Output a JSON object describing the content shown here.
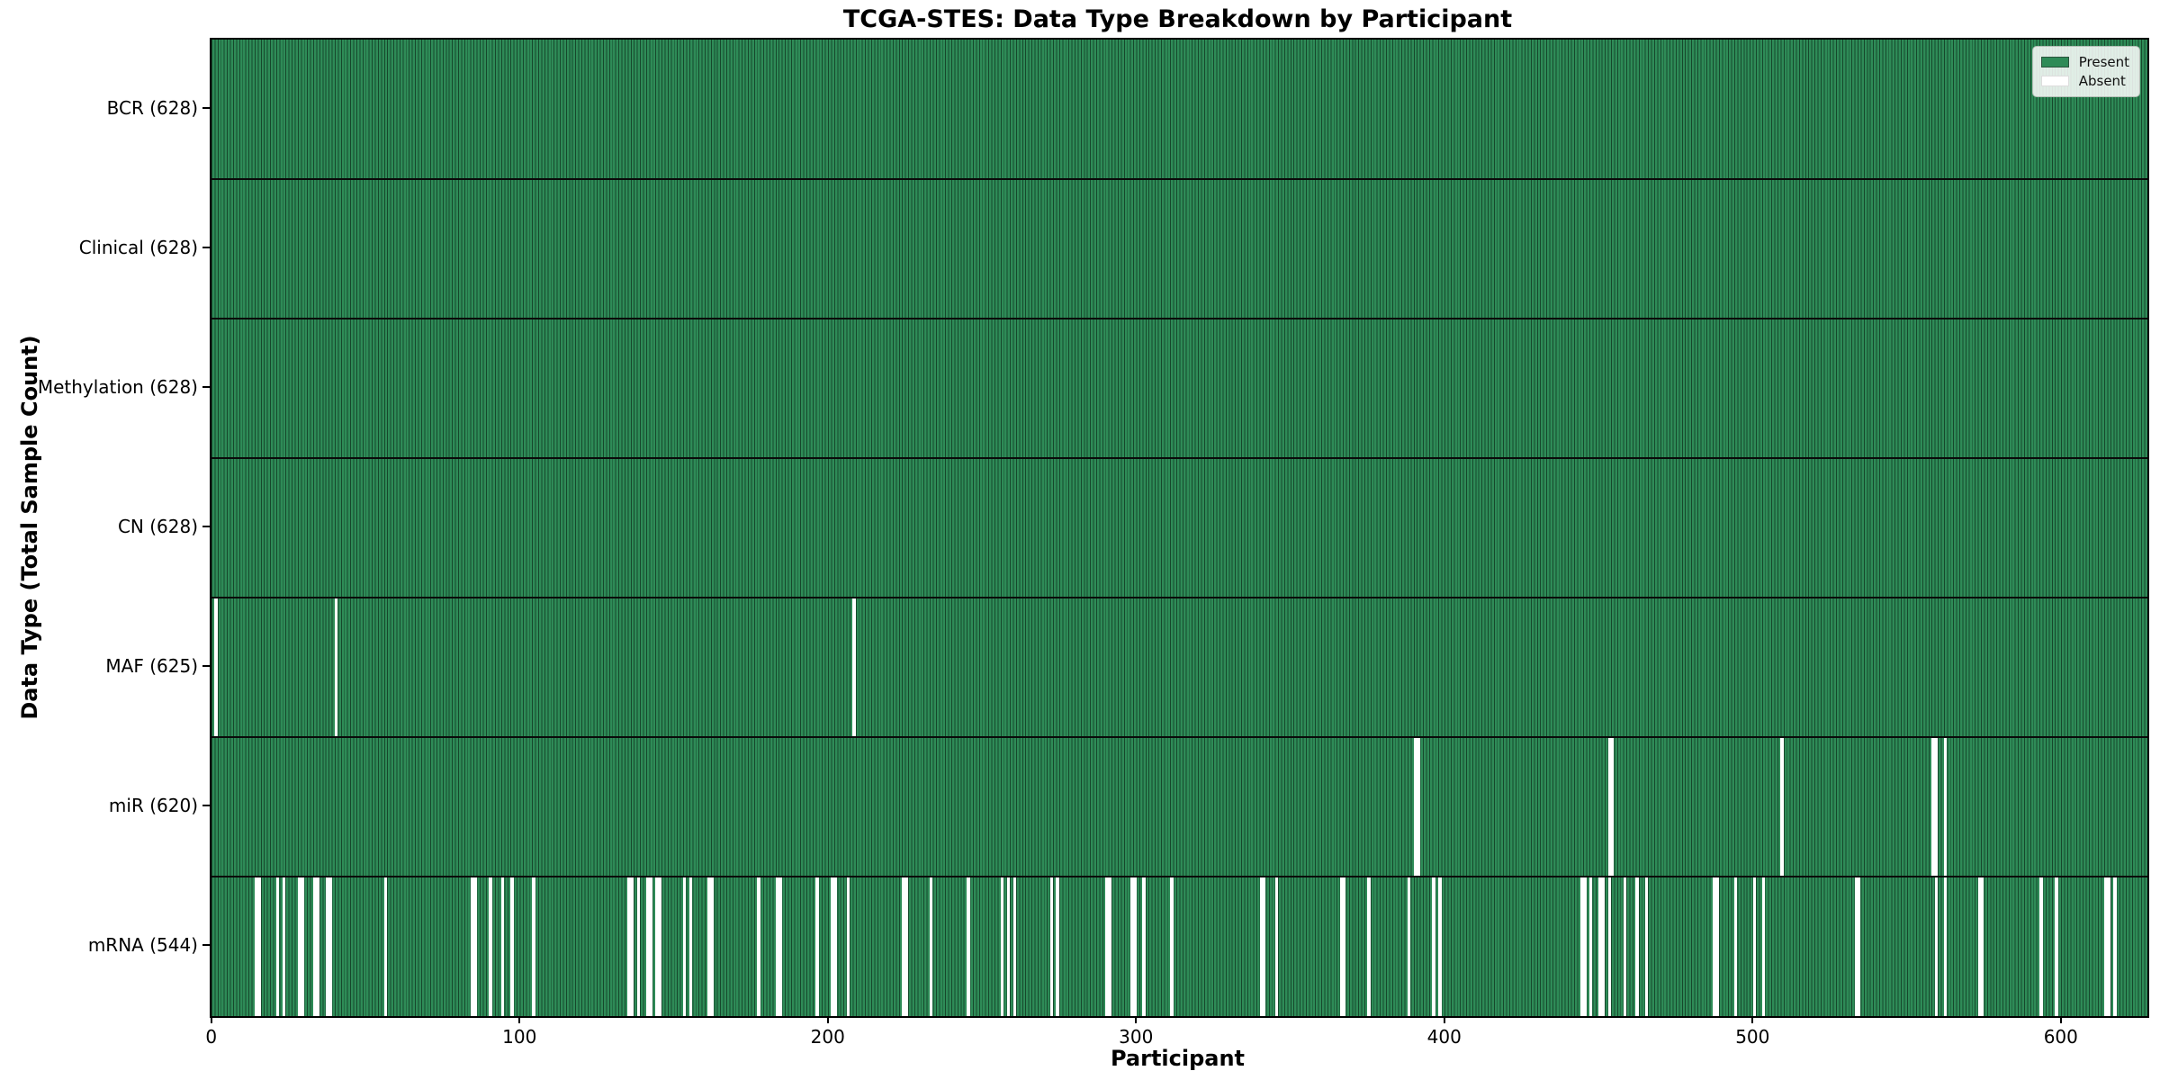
{
  "chart_data": {
    "type": "heatmap",
    "title": "TCGA-STES: Data Type Breakdown by Participant",
    "xlabel": "Participant",
    "ylabel": "Data Type (Total Sample Count)",
    "x_ticks": [
      0,
      100,
      200,
      300,
      400,
      500,
      600
    ],
    "n_participants": 628,
    "grid": false,
    "colors": {
      "present": "#2e8b57",
      "bar_edge": "#16482c",
      "absent": "#ffffff",
      "spine": "#000000"
    },
    "legend": {
      "position": "upper right",
      "entries": [
        {
          "label": "Present",
          "color": "#2e8b57"
        },
        {
          "label": "Absent",
          "color": "#ffffff"
        }
      ]
    },
    "rows": [
      {
        "name": "BCR",
        "label": "BCR (628)",
        "present_count": 628,
        "absent_count": 0,
        "absent": []
      },
      {
        "name": "Clinical",
        "label": "Clinical (628)",
        "present_count": 628,
        "absent_count": 0,
        "absent": []
      },
      {
        "name": "Methylation",
        "label": "Methylation (628)",
        "present_count": 628,
        "absent_count": 0,
        "absent": []
      },
      {
        "name": "CN",
        "label": "CN (628)",
        "present_count": 628,
        "absent_count": 0,
        "absent": []
      },
      {
        "name": "MAF",
        "label": "MAF (625)",
        "present_count": 625,
        "absent_count": 3,
        "absent": [
          [
            1,
            1
          ],
          [
            40,
            1
          ],
          [
            208,
            1
          ]
        ]
      },
      {
        "name": "miR",
        "label": "miR (620)",
        "present_count": 620,
        "absent_count": 8,
        "absent": [
          [
            390,
            2
          ],
          [
            453,
            2
          ],
          [
            509,
            1
          ],
          [
            558,
            2
          ],
          [
            562,
            1
          ]
        ]
      },
      {
        "name": "mRNA",
        "label": "mRNA (544)",
        "present_count": 544,
        "absent_count": 84,
        "absent": [
          [
            14,
            2
          ],
          [
            21,
            1
          ],
          [
            23,
            1
          ],
          [
            28,
            2
          ],
          [
            33,
            2
          ],
          [
            37,
            2
          ],
          [
            56,
            1
          ],
          [
            84,
            2
          ],
          [
            90,
            1
          ],
          [
            94,
            1
          ],
          [
            97,
            1
          ],
          [
            104,
            1
          ],
          [
            135,
            2
          ],
          [
            138,
            1
          ],
          [
            141,
            2
          ],
          [
            144,
            2
          ],
          [
            153,
            1
          ],
          [
            155,
            1
          ],
          [
            161,
            2
          ],
          [
            177,
            1
          ],
          [
            183,
            2
          ],
          [
            196,
            1
          ],
          [
            201,
            2
          ],
          [
            206,
            1
          ],
          [
            224,
            2
          ],
          [
            233,
            1
          ],
          [
            245,
            1
          ],
          [
            256,
            1
          ],
          [
            258,
            1
          ],
          [
            260,
            1
          ],
          [
            272,
            1
          ],
          [
            274,
            1
          ],
          [
            290,
            2
          ],
          [
            298,
            2
          ],
          [
            302,
            1
          ],
          [
            311,
            1
          ],
          [
            340,
            2
          ],
          [
            345,
            1
          ],
          [
            366,
            2
          ],
          [
            375,
            1
          ],
          [
            388,
            1
          ],
          [
            396,
            1
          ],
          [
            398,
            1
          ],
          [
            444,
            2
          ],
          [
            447,
            1
          ],
          [
            450,
            2
          ],
          [
            453,
            1
          ],
          [
            458,
            1
          ],
          [
            462,
            1
          ],
          [
            465,
            1
          ],
          [
            487,
            2
          ],
          [
            494,
            1
          ],
          [
            500,
            1
          ],
          [
            503,
            1
          ],
          [
            533,
            2
          ],
          [
            559,
            1
          ],
          [
            562,
            1
          ],
          [
            573,
            2
          ],
          [
            593,
            1
          ],
          [
            598,
            1
          ],
          [
            614,
            2
          ],
          [
            617,
            1
          ]
        ]
      }
    ]
  }
}
